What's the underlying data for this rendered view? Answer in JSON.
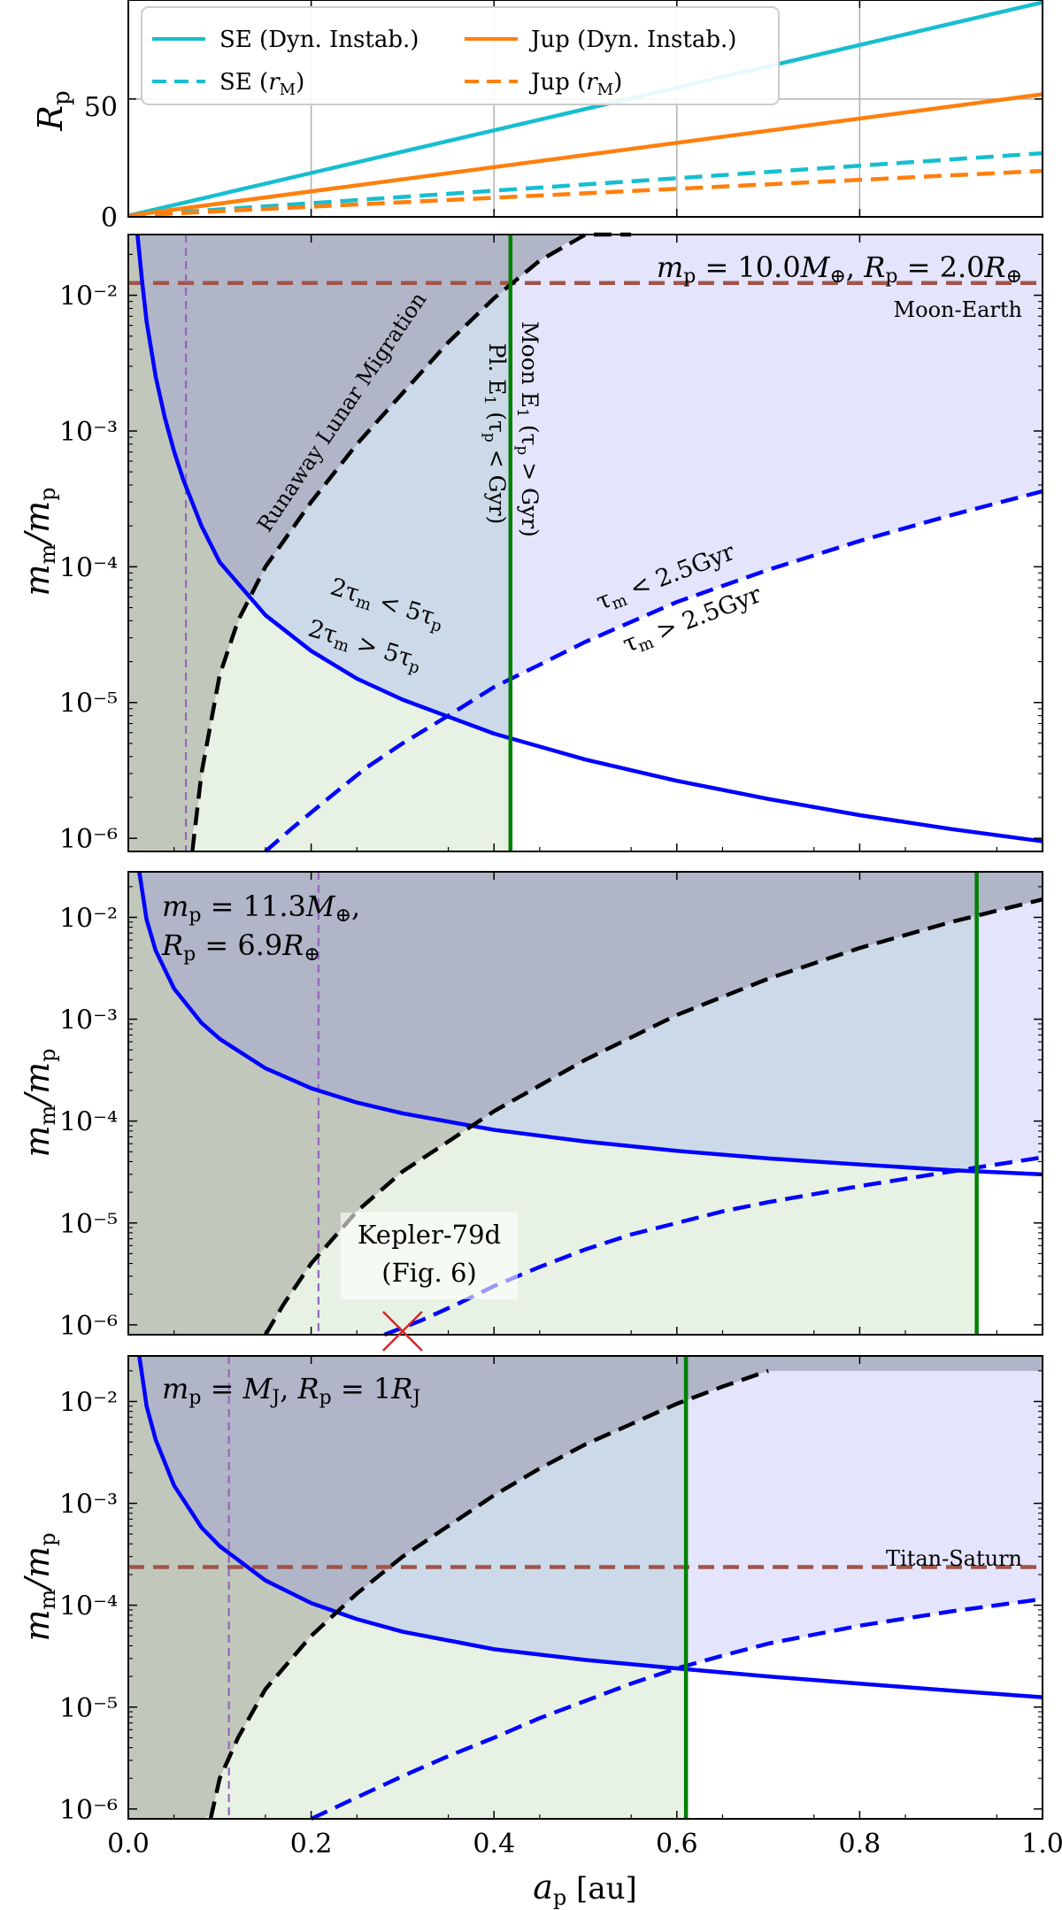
{
  "chart_data": [
    {
      "type": "line",
      "panel": "top",
      "xlim": [
        0.0,
        1.0
      ],
      "ylim": [
        0,
        92
      ],
      "x_ticks": [
        0.0,
        0.2,
        0.4,
        0.6,
        0.8,
        1.0
      ],
      "y_ticks": [
        0,
        50
      ],
      "y_tick_labels": [
        "0",
        "50"
      ],
      "ylabel": "Rp",
      "grid": true,
      "legend_position": "top-left",
      "series": [
        {
          "name": "SE (Dyn. Instab.)",
          "color": "#17becf",
          "dash": "solid",
          "x": [
            0.0,
            1.0
          ],
          "y": [
            0.5,
            91
          ]
        },
        {
          "name": "SE (rM)",
          "color": "#17becf",
          "dash": "dashed",
          "x": [
            0.0,
            1.0
          ],
          "y": [
            0.5,
            27
          ]
        },
        {
          "name": "Jup (Dyn. Instab.)",
          "color": "#ff7f0e",
          "dash": "solid",
          "x": [
            0.0,
            1.0
          ],
          "y": [
            0.5,
            52
          ]
        },
        {
          "name": "Jup (rM)",
          "color": "#ff7f0e",
          "dash": "dashed",
          "x": [
            0.0,
            1.0
          ],
          "y": [
            0.5,
            19.5
          ]
        }
      ]
    },
    {
      "type": "line",
      "panel": "super-earth",
      "xlim": [
        0.0,
        1.0
      ],
      "ylog": true,
      "ylim": [
        8e-07,
        0.028
      ],
      "y_tick_labels": [
        "10⁻²",
        "10⁻³",
        "10⁻⁴",
        "10⁻⁵",
        "10⁻⁶"
      ],
      "ylabel": "mm/mp",
      "annotation": "mp = 10.0M⊕, Rp = 2.0R⊕",
      "reference_line": {
        "label": "Moon-Earth",
        "y": 0.0123,
        "color": "#a0554a"
      },
      "vline_green": 0.418,
      "vline_purple": 0.063,
      "series": [
        {
          "label": "tau_m = 5 tau_p (solid blue)",
          "color": "#0000ff",
          "dash": "solid",
          "x": [
            0.01,
            0.015,
            0.02,
            0.03,
            0.04,
            0.05,
            0.06,
            0.08,
            0.1,
            0.15,
            0.2,
            0.25,
            0.3,
            0.4,
            0.5,
            0.6,
            0.7,
            0.8,
            0.9,
            1.0
          ],
          "y": [
            0.03,
            0.0128,
            0.0064,
            0.0025,
            0.00125,
            0.00071,
            0.00044,
            0.0002,
            0.000108,
            4.4e-05,
            2.4e-05,
            1.5e-05,
            1.05e-05,
            5.9e-06,
            3.8e-06,
            2.65e-06,
            1.95e-06,
            1.48e-06,
            1.17e-06,
            9.5e-07
          ]
        },
        {
          "label": "tau_m = 2.5 Gyr (dashed blue)",
          "color": "#0000ff",
          "dash": "dashed",
          "x": [
            0.15,
            0.18,
            0.22,
            0.26,
            0.3,
            0.35,
            0.4,
            0.45,
            0.5,
            0.6,
            0.7,
            0.8,
            0.9,
            1.0
          ],
          "y": [
            8e-07,
            1.2e-06,
            2e-06,
            3.3e-06,
            5e-06,
            8e-06,
            1.3e-05,
            1.9e-05,
            2.8e-05,
            5.5e-05,
            9.5e-05,
            0.000155,
            0.00024,
            0.00036
          ]
        },
        {
          "label": "Runaway Lunar Migration (dashed black)",
          "color": "#000000",
          "dash": "dashed",
          "x": [
            0.07,
            0.08,
            0.1,
            0.12,
            0.15,
            0.2,
            0.25,
            0.3,
            0.35,
            0.4,
            0.45,
            0.5,
            0.55
          ],
          "y": [
            8e-07,
            3e-06,
            1.6e-05,
            4e-05,
            0.0001,
            0.0003,
            0.0008,
            0.0019,
            0.0045,
            0.0095,
            0.018,
            0.03,
            0.04
          ]
        }
      ],
      "labels": [
        "Runaway Lunar Migration",
        "Pl. E1 (τp < Gyr)",
        "Moon E1 (τp > Gyr)",
        "2τm < 5τp",
        "2τm > 5τp",
        "τm < 2.5Gyr",
        "τm > 2.5Gyr"
      ]
    },
    {
      "type": "line",
      "panel": "neptune",
      "xlim": [
        0.0,
        1.0
      ],
      "ylog": true,
      "ylim": [
        8e-07,
        0.028
      ],
      "y_tick_labels": [
        "10⁻²",
        "10⁻³",
        "10⁻⁴",
        "10⁻⁵",
        "10⁻⁶"
      ],
      "ylabel": "mm/mp",
      "annotation_line1": "mp = 11.3M⊕,",
      "annotation_line2": "Rp = 6.9R⊕",
      "vline_green": 0.928,
      "vline_purple": 0.208,
      "marker": {
        "label_line1": "Kepler-79d",
        "label_line2": "(Fig. 6)",
        "x": 0.3,
        "y": 8e-07,
        "color": "#d62728"
      },
      "series": [
        {
          "label": "tau_m = 5 tau_p (solid blue)",
          "color": "#0000ff",
          "dash": "solid",
          "x": [
            0.012,
            0.02,
            0.03,
            0.05,
            0.08,
            0.1,
            0.15,
            0.2,
            0.25,
            0.3,
            0.4,
            0.5,
            0.6,
            0.7,
            0.8,
            0.9,
            1.0
          ],
          "y": [
            0.03,
            0.0095,
            0.0047,
            0.002,
            0.00092,
            0.00064,
            0.00033,
            0.00021,
            0.000152,
            0.000119,
            8.2e-05,
            6.3e-05,
            5.1e-05,
            4.3e-05,
            3.75e-05,
            3.3e-05,
            3e-05
          ]
        },
        {
          "label": "tau_m = 2.5 Gyr (dashed blue)",
          "color": "#0000ff",
          "dash": "dashed",
          "x": [
            0.28,
            0.32,
            0.36,
            0.4,
            0.45,
            0.5,
            0.55,
            0.6,
            0.65,
            0.7,
            0.8,
            0.9,
            1.0
          ],
          "y": [
            8e-07,
            1.1e-06,
            1.6e-06,
            2.4e-06,
            3.7e-06,
            5.5e-06,
            7.7e-06,
            1e-05,
            1.3e-05,
            1.6e-05,
            2.3e-05,
            3.2e-05,
            4.4e-05
          ]
        },
        {
          "label": "Runaway Lunar Migration (dashed black)",
          "color": "#000000",
          "dash": "dashed",
          "x": [
            0.15,
            0.17,
            0.2,
            0.25,
            0.3,
            0.35,
            0.4,
            0.5,
            0.6,
            0.7,
            0.8,
            0.9,
            1.0
          ],
          "y": [
            8e-07,
            1.6e-06,
            4e-06,
            1.3e-05,
            3.2e-05,
            6.3e-05,
            0.000125,
            0.0004,
            0.0011,
            0.0025,
            0.005,
            0.009,
            0.015
          ]
        }
      ]
    },
    {
      "type": "line",
      "panel": "jupiter",
      "xlim": [
        0.0,
        1.0
      ],
      "ylog": true,
      "ylim": [
        8e-07,
        0.028
      ],
      "y_tick_labels": [
        "10⁻²",
        "10⁻³",
        "10⁻⁴",
        "10⁻⁵",
        "10⁻⁶"
      ],
      "ylabel": "mm/mp",
      "xlabel": "ap [au]",
      "x_tick_labels": [
        "0.0",
        "0.2",
        "0.4",
        "0.6",
        "0.8",
        "1.0"
      ],
      "annotation": "mp = MJ, Rp = 1RJ",
      "reference_line": {
        "label": "Titan-Saturn",
        "y": 0.000237,
        "color": "#a0554a"
      },
      "vline_green": 0.61,
      "vline_purple": 0.11,
      "series": [
        {
          "label": "tau_m = 5 tau_p (solid blue)",
          "color": "#0000ff",
          "dash": "solid",
          "x": [
            0.012,
            0.02,
            0.03,
            0.05,
            0.08,
            0.1,
            0.15,
            0.2,
            0.25,
            0.3,
            0.4,
            0.5,
            0.6,
            0.7,
            0.8,
            0.9,
            1.0
          ],
          "y": [
            0.03,
            0.009,
            0.0042,
            0.0015,
            0.00058,
            0.00038,
            0.000175,
            0.000105,
            7.3e-05,
            5.5e-05,
            3.7e-05,
            2.9e-05,
            2.4e-05,
            2e-05,
            1.7e-05,
            1.45e-05,
            1.25e-05
          ]
        },
        {
          "label": "tau_m = 2.5 Gyr (dashed blue)",
          "color": "#0000ff",
          "dash": "dashed",
          "x": [
            0.2,
            0.25,
            0.3,
            0.35,
            0.4,
            0.45,
            0.5,
            0.55,
            0.6,
            0.65,
            0.7,
            0.8,
            0.9,
            1.0
          ],
          "y": [
            8e-07,
            1.3e-06,
            2.1e-06,
            3.3e-06,
            5e-06,
            7.8e-06,
            1.15e-05,
            1.7e-05,
            2.4e-05,
            3.2e-05,
            4.2e-05,
            6.3e-05,
            8.7e-05,
            0.000115
          ]
        },
        {
          "label": "Runaway Lunar Migration (dashed black)",
          "color": "#000000",
          "dash": "dashed",
          "x": [
            0.09,
            0.1,
            0.12,
            0.15,
            0.2,
            0.25,
            0.3,
            0.35,
            0.4,
            0.45,
            0.5,
            0.55,
            0.6,
            0.65,
            0.7
          ],
          "y": [
            8e-07,
            2e-06,
            5e-06,
            1.5e-05,
            5e-05,
            0.00013,
            0.0003,
            0.0006,
            0.0012,
            0.0022,
            0.0038,
            0.006,
            0.0095,
            0.014,
            0.02
          ]
        }
      ]
    }
  ],
  "text": {
    "legend_se_dyn": "SE (Dyn. Instab.)",
    "legend_se_rm_a": "SE (",
    "legend_se_rm_b": "r",
    "legend_se_rm_c": "M",
    "legend_se_rm_d": ")",
    "legend_jup_dyn": "Jup (Dyn. Instab.)",
    "legend_jup_rm_a": "Jup (",
    "legend_jup_rm_b": "r",
    "legend_jup_rm_c": "M",
    "legend_jup_rm_d": ")",
    "top_ylabel_a": "R",
    "top_ylabel_b": "p",
    "mm_a": "m",
    "mm_b": "m",
    "mm_c": "/",
    "mm_d": "m",
    "mm_e": "p",
    "xlabel_a": "a",
    "xlabel_b": "p",
    "xlabel_c": " [au]",
    "p1_ann_a": "m",
    "p1_ann_b": "p",
    "p1_ann_c": " = 10.0",
    "p1_ann_d": "M",
    "p1_ann_e": "⊕",
    "p1_ann_f": ", ",
    "p1_ann_g": "R",
    "p1_ann_h": "p",
    "p1_ann_i": " = 2.0",
    "p1_ann_j": "R",
    "p1_ann_k": "⊕",
    "moon_earth": "Moon-Earth",
    "runaway": "Runaway Lunar Migration",
    "pl_e1_a": "Pl. E",
    "pl_e1_b": "1",
    "pl_e1_c": " (τ",
    "pl_e1_d": "p",
    "pl_e1_e": " < Gyr)",
    "moon_e1_a": "Moon E",
    "moon_e1_b": "1",
    "moon_e1_c": " (τ",
    "moon_e1_d": "p",
    "moon_e1_e": " > Gyr)",
    "lt5_a": "2τ",
    "lt5_b": "m",
    "lt5_c": " < 5τ",
    "lt5_d": "p",
    "gt5_a": "2τ",
    "gt5_b": "m",
    "gt5_c": " > 5τ",
    "gt5_d": "p",
    "tm_lt_a": "τ",
    "tm_lt_b": "m",
    "tm_lt_c": " < 2.5Gyr",
    "tm_gt_a": "τ",
    "tm_gt_b": "m",
    "tm_gt_c": " > 2.5Gyr",
    "p2_ann1_a": "m",
    "p2_ann1_b": "p",
    "p2_ann1_c": " = 11.3",
    "p2_ann1_d": "M",
    "p2_ann1_e": "⊕",
    "p2_ann1_f": ",",
    "p2_ann2_a": "R",
    "p2_ann2_b": "p",
    "p2_ann2_c": " = 6.9",
    "p2_ann2_d": "R",
    "p2_ann2_e": "⊕",
    "kepler_1": "Kepler-79d",
    "kepler_2": "(Fig. 6)",
    "p3_ann_a": "m",
    "p3_ann_b": "p",
    "p3_ann_c": " = ",
    "p3_ann_d": "M",
    "p3_ann_e": "J",
    "p3_ann_f": ", ",
    "p3_ann_g": "R",
    "p3_ann_h": "p",
    "p3_ann_i": " = 1",
    "p3_ann_j": "R",
    "p3_ann_k": "J",
    "titan_saturn": "Titan-Saturn"
  },
  "colors": {
    "se": "#17becf",
    "jup": "#ff7f0e",
    "blue": "#0000ff",
    "green": "#008000",
    "purple": "#9467bd",
    "brown": "#a0554a",
    "red": "#d62728",
    "region_gray": "#c0c4b8",
    "region_navy": "#b0b4c8",
    "region_lightblue": "#ccd9e8",
    "region_lavender": "#e4e4fc",
    "region_mint": "#e8f2e4"
  }
}
